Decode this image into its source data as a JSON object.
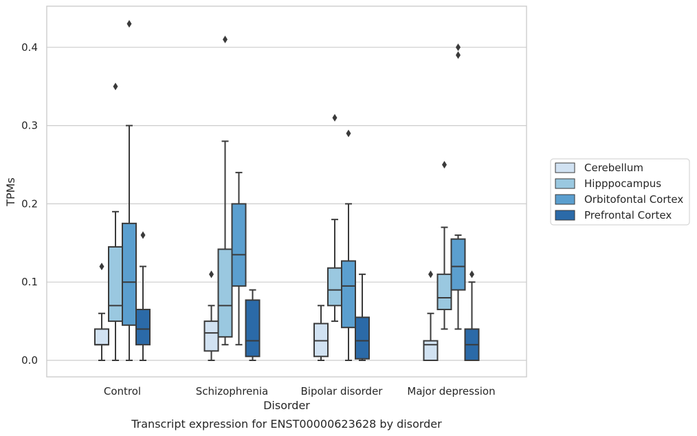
{
  "chart_data": {
    "type": "box",
    "title": "",
    "caption": "Transcript expression for ENST00000623628 by disorder",
    "xlabel": "Disorder",
    "ylabel": "TPMs",
    "ylim": [
      -0.021,
      0.453
    ],
    "yticks": [
      0.0,
      0.1,
      0.2,
      0.3,
      0.4
    ],
    "ytick_labels": [
      "0.0",
      "0.1",
      "0.2",
      "0.3",
      "0.4"
    ],
    "grid": "horizontal",
    "legend_position": "right",
    "categories": [
      "Control",
      "Schizophrenia",
      "Bipolar disorder",
      "Major depression"
    ],
    "series": [
      {
        "name": "Cerebellum",
        "color": "#d1e2f2",
        "boxes": [
          {
            "whisker_low": 0.0,
            "q1": 0.02,
            "median": 0.02,
            "q3": 0.04,
            "whisker_high": 0.06,
            "outliers": [
              0.12
            ]
          },
          {
            "whisker_low": 0.0,
            "q1": 0.012,
            "median": 0.035,
            "q3": 0.05,
            "whisker_high": 0.07,
            "outliers": [
              0.11
            ]
          },
          {
            "whisker_low": 0.0,
            "q1": 0.005,
            "median": 0.025,
            "q3": 0.047,
            "whisker_high": 0.07,
            "outliers": []
          },
          {
            "whisker_low": 0.0,
            "q1": 0.0,
            "median": 0.02,
            "q3": 0.025,
            "whisker_high": 0.06,
            "outliers": [
              0.11
            ]
          }
        ]
      },
      {
        "name": "Hipppocampus",
        "color": "#9ac8e0",
        "boxes": [
          {
            "whisker_low": 0.0,
            "q1": 0.05,
            "median": 0.07,
            "q3": 0.145,
            "whisker_high": 0.19,
            "outliers": [
              0.35
            ]
          },
          {
            "whisker_low": 0.02,
            "q1": 0.03,
            "median": 0.07,
            "q3": 0.142,
            "whisker_high": 0.28,
            "outliers": [
              0.41
            ]
          },
          {
            "whisker_low": 0.05,
            "q1": 0.07,
            "median": 0.09,
            "q3": 0.118,
            "whisker_high": 0.18,
            "outliers": [
              0.31
            ]
          },
          {
            "whisker_low": 0.04,
            "q1": 0.065,
            "median": 0.08,
            "q3": 0.11,
            "whisker_high": 0.17,
            "outliers": [
              0.25
            ]
          }
        ]
      },
      {
        "name": "Orbitofontal Cortex",
        "color": "#5b9fcf",
        "boxes": [
          {
            "whisker_low": 0.0,
            "q1": 0.045,
            "median": 0.1,
            "q3": 0.175,
            "whisker_high": 0.3,
            "outliers": [
              0.43
            ]
          },
          {
            "whisker_low": 0.02,
            "q1": 0.095,
            "median": 0.135,
            "q3": 0.2,
            "whisker_high": 0.24,
            "outliers": []
          },
          {
            "whisker_low": 0.0,
            "q1": 0.042,
            "median": 0.095,
            "q3": 0.127,
            "whisker_high": 0.2,
            "outliers": [
              0.29
            ]
          },
          {
            "whisker_low": 0.04,
            "q1": 0.09,
            "median": 0.12,
            "q3": 0.155,
            "whisker_high": 0.16,
            "outliers": [
              0.39,
              0.4
            ]
          }
        ]
      },
      {
        "name": "Prefrontal Cortex",
        "color": "#2b6aa8",
        "boxes": [
          {
            "whisker_low": 0.0,
            "q1": 0.02,
            "median": 0.04,
            "q3": 0.065,
            "whisker_high": 0.12,
            "outliers": [
              0.16
            ]
          },
          {
            "whisker_low": 0.0,
            "q1": 0.005,
            "median": 0.025,
            "q3": 0.077,
            "whisker_high": 0.09,
            "outliers": []
          },
          {
            "whisker_low": 0.0,
            "q1": 0.002,
            "median": 0.025,
            "q3": 0.055,
            "whisker_high": 0.11,
            "outliers": []
          },
          {
            "whisker_low": 0.0,
            "q1": 0.0,
            "median": 0.02,
            "q3": 0.04,
            "whisker_high": 0.1,
            "outliers": [
              0.11
            ]
          }
        ]
      }
    ]
  }
}
